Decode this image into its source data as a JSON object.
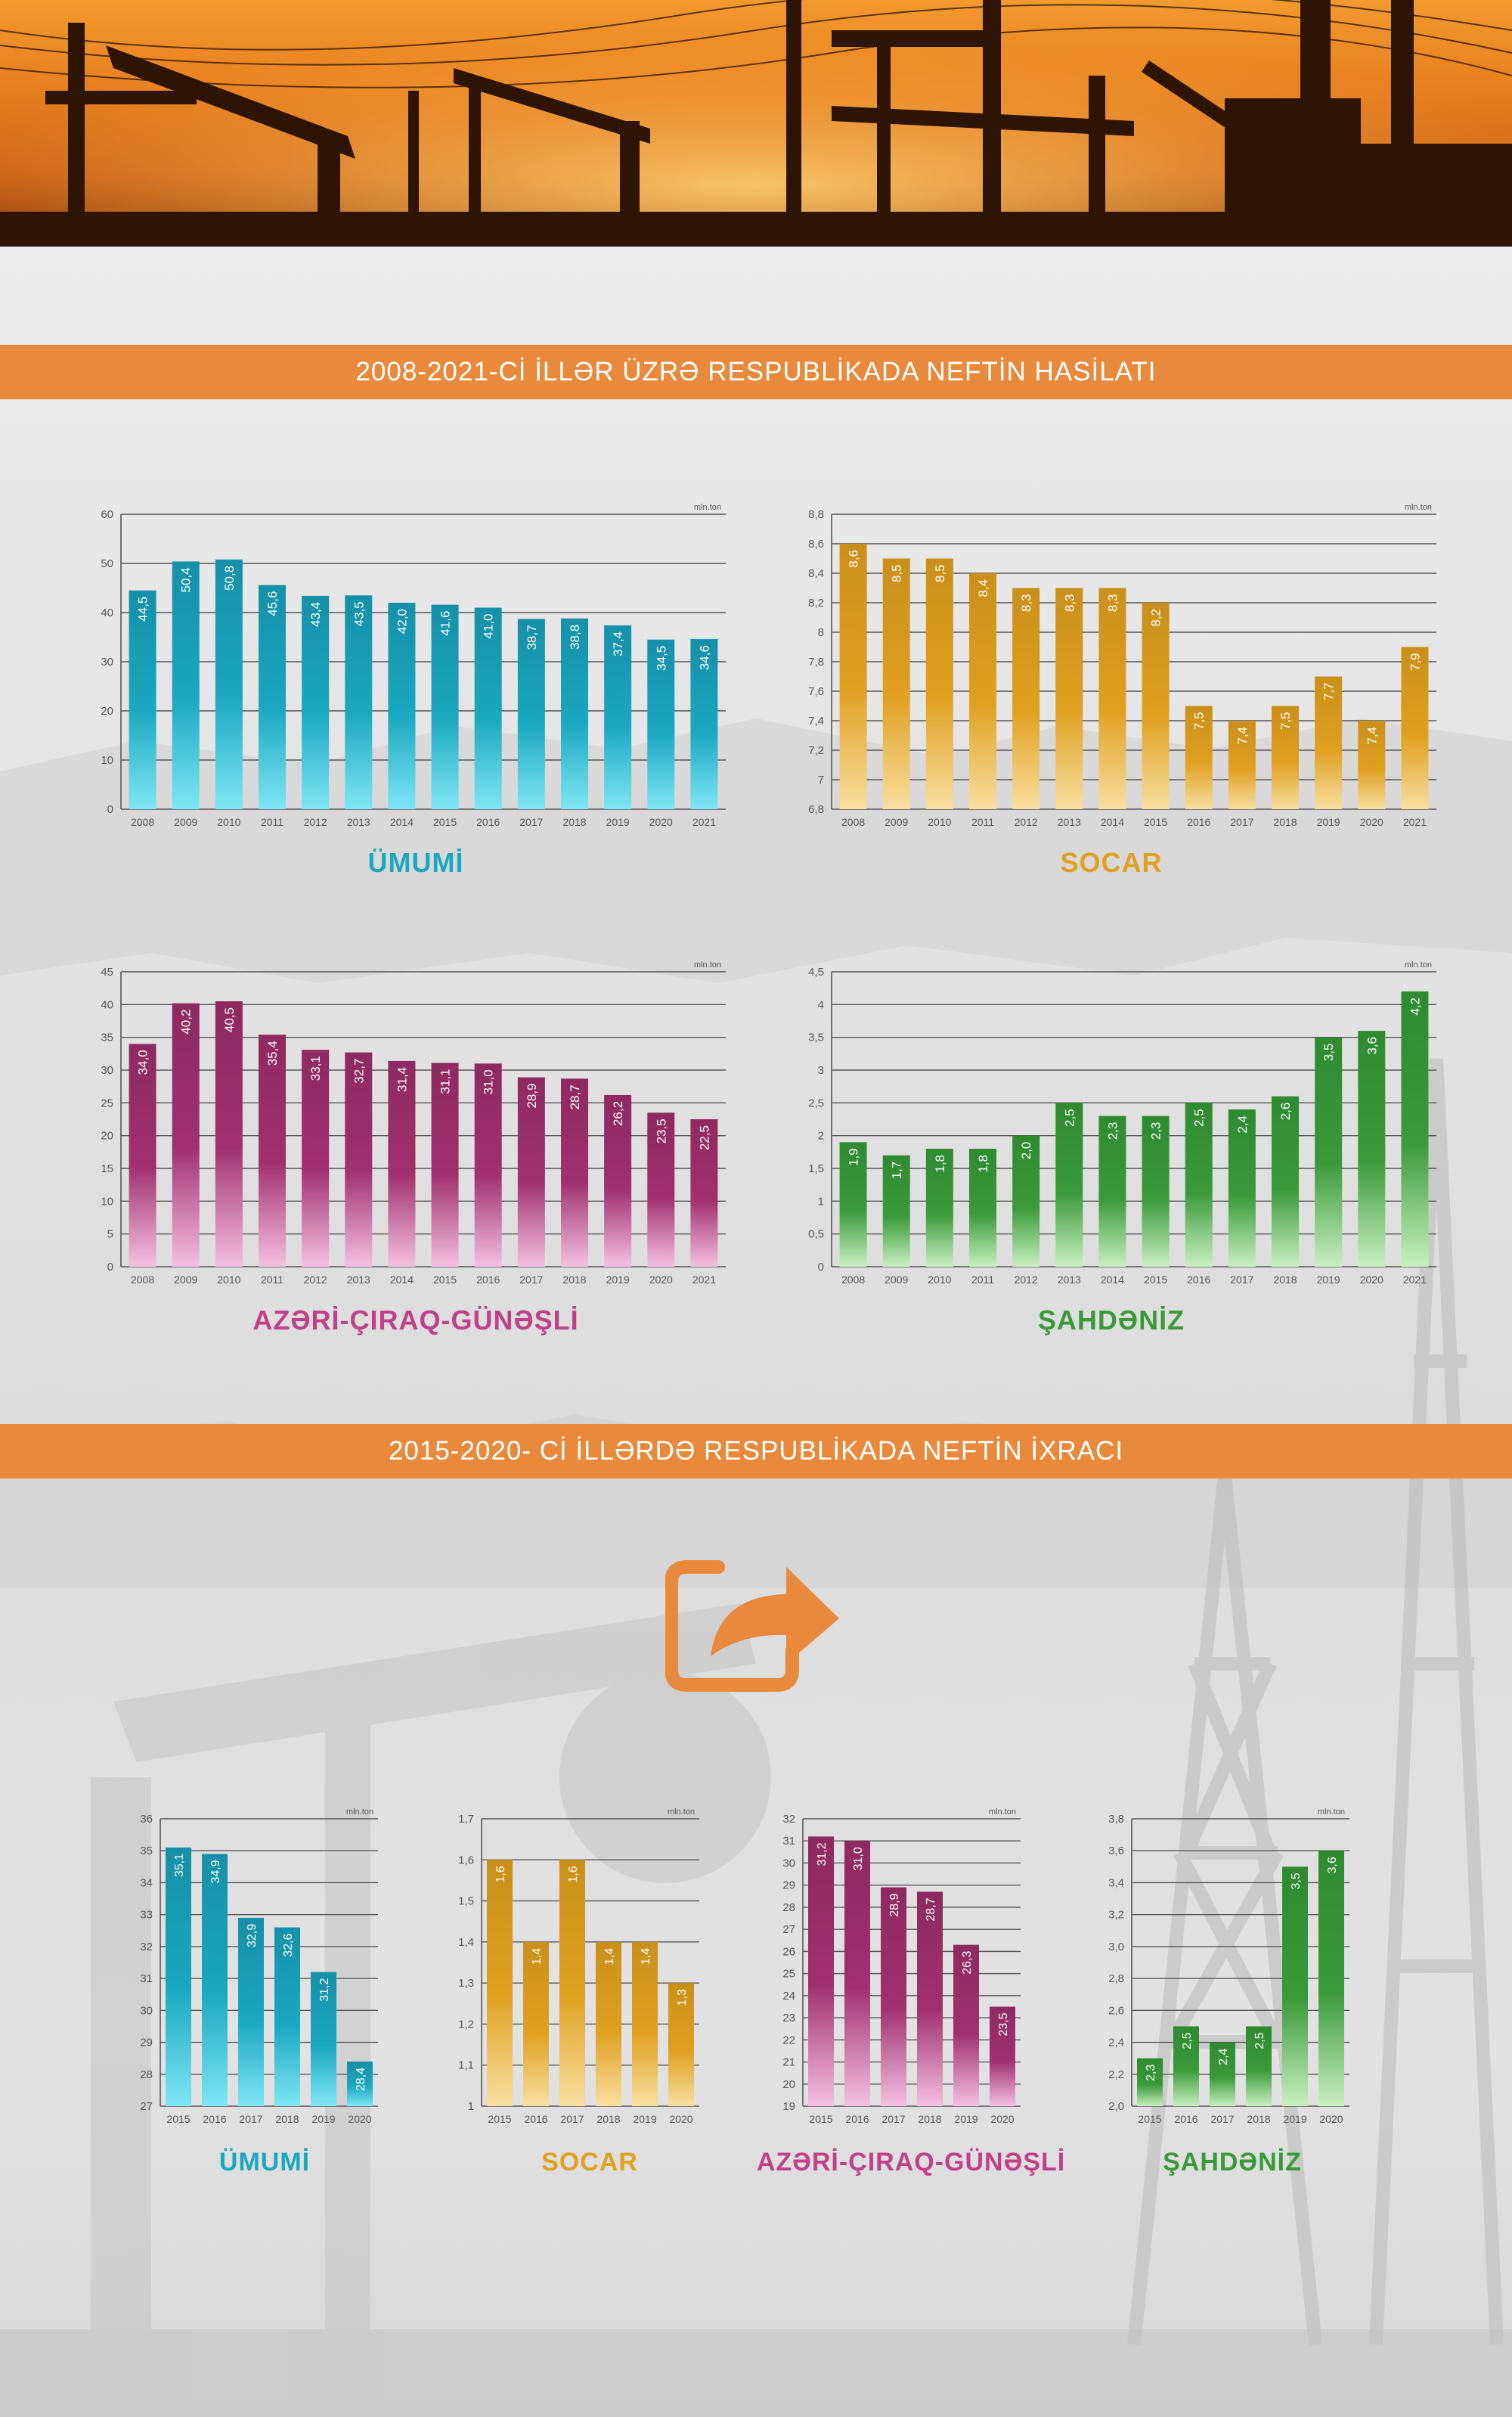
{
  "banners": {
    "production": "2008-2021-Cİ İLLƏR ÜZRƏ RESPUBLİKADA NEFTİN HASİLATI",
    "export": "2015-2020- Cİ İLLƏRDƏ RESPUBLİKADA NEFTİN İXRACI"
  },
  "colors": {
    "umumi": "#1aa8c0",
    "socar": "#e0a020",
    "acg": "#a0306e",
    "shahdeniz": "#3a9a3a",
    "banner": "#e8893c"
  },
  "icons": [
    "export-share-icon"
  ],
  "chart_data": [
    {
      "id": "prod-umumi",
      "type": "bar",
      "title": "ÜMUMİ",
      "unit": "mln.ton",
      "categories": [
        "2008",
        "2009",
        "2010",
        "2011",
        "2012",
        "2013",
        "2014",
        "2015",
        "2016",
        "2017",
        "2018",
        "2019",
        "2020",
        "2021"
      ],
      "values": [
        44.5,
        50.4,
        50.8,
        45.6,
        43.4,
        43.5,
        42.0,
        41.6,
        41.0,
        38.7,
        38.8,
        37.4,
        34.5,
        34.6
      ],
      "value_labels": [
        "44,5",
        "50,4",
        "50,8",
        "45,6",
        "43,4",
        "43,5",
        "42,0",
        "41,6",
        "41,0",
        "38,7",
        "38,8",
        "37,4",
        "34,5",
        "34,6"
      ],
      "ylim": [
        0,
        60
      ],
      "yticks": [
        0,
        10,
        20,
        30,
        40,
        50,
        60
      ],
      "ytick_labels": [
        "0",
        "10",
        "20",
        "30",
        "40",
        "50",
        "60"
      ]
    },
    {
      "id": "prod-socar",
      "type": "bar",
      "title": "SOCAR",
      "unit": "mln.ton",
      "categories": [
        "2008",
        "2009",
        "2010",
        "2011",
        "2012",
        "2013",
        "2014",
        "2015",
        "2016",
        "2017",
        "2018",
        "2019",
        "2020",
        "2021"
      ],
      "values": [
        8.6,
        8.5,
        8.5,
        8.4,
        8.3,
        8.3,
        8.3,
        8.2,
        7.5,
        7.4,
        7.5,
        7.7,
        7.4,
        7.9
      ],
      "value_labels": [
        "8,6",
        "8,5",
        "8,5",
        "8,4",
        "8,3",
        "8,3",
        "8,3",
        "8,2",
        "7,5",
        "7,4",
        "7,5",
        "7,7",
        "7,4",
        "7,9"
      ],
      "ylim": [
        6.8,
        8.8
      ],
      "yticks": [
        6.8,
        7,
        7.2,
        7.4,
        7.6,
        7.8,
        8,
        8.2,
        8.4,
        8.6,
        8.8
      ],
      "ytick_labels": [
        "6,8",
        "7",
        "7,2",
        "7,4",
        "7,6",
        "7,8",
        "8",
        "8,2",
        "8,4",
        "8,6",
        "8,8"
      ]
    },
    {
      "id": "prod-acg",
      "type": "bar",
      "title": "AZƏRİ-ÇIRAQ-GÜNƏŞLİ",
      "unit": "mln.ton",
      "categories": [
        "2008",
        "2009",
        "2010",
        "2011",
        "2012",
        "2013",
        "2014",
        "2015",
        "2016",
        "2017",
        "2018",
        "2019",
        "2020",
        "2021"
      ],
      "values": [
        34.0,
        40.2,
        40.5,
        35.4,
        33.1,
        32.7,
        31.4,
        31.1,
        31.0,
        28.9,
        28.7,
        26.2,
        23.5,
        22.5
      ],
      "value_labels": [
        "34,0",
        "40,2",
        "40,5",
        "35,4",
        "33,1",
        "32,7",
        "31,4",
        "31,1",
        "31,0",
        "28,9",
        "28,7",
        "26,2",
        "23,5",
        "22,5"
      ],
      "ylim": [
        0,
        45
      ],
      "yticks": [
        0,
        5,
        10,
        15,
        20,
        25,
        30,
        35,
        40,
        45
      ],
      "ytick_labels": [
        "0",
        "5",
        "10",
        "15",
        "20",
        "25",
        "30",
        "35",
        "40",
        "45"
      ]
    },
    {
      "id": "prod-shahdeniz",
      "type": "bar",
      "title": "ŞAHDƏNİZ",
      "unit": "mln.ton",
      "categories": [
        "2008",
        "2009",
        "2010",
        "2011",
        "2012",
        "2013",
        "2014",
        "2015",
        "2016",
        "2017",
        "2018",
        "2019",
        "2020",
        "2021"
      ],
      "values": [
        1.9,
        1.7,
        1.8,
        1.8,
        2.0,
        2.5,
        2.3,
        2.3,
        2.5,
        2.4,
        2.6,
        3.5,
        3.6,
        4.2
      ],
      "value_labels": [
        "1,9",
        "1,7",
        "1,8",
        "1,8",
        "2,0",
        "2,5",
        "2,3",
        "2,3",
        "2,5",
        "2,4",
        "2,6",
        "3,5",
        "3,6",
        "4,2"
      ],
      "ylim": [
        0,
        4.5
      ],
      "yticks": [
        0,
        0.5,
        1,
        1.5,
        2,
        2.5,
        3,
        3.5,
        4,
        4.5
      ],
      "ytick_labels": [
        "0",
        "0,5",
        "1",
        "1,5",
        "2",
        "2,5",
        "3",
        "3,5",
        "4",
        "4,5"
      ]
    },
    {
      "id": "exp-umumi",
      "type": "bar",
      "title": "ÜMUMİ",
      "unit": "mln.ton",
      "categories": [
        "2015",
        "2016",
        "2017",
        "2018",
        "2019",
        "2020"
      ],
      "values": [
        35.1,
        34.9,
        32.9,
        32.6,
        31.2,
        28.4
      ],
      "value_labels": [
        "35,1",
        "34,9",
        "32,9",
        "32,6",
        "31,2",
        "28,4"
      ],
      "ylim": [
        27,
        36
      ],
      "yticks": [
        27,
        28,
        29,
        30,
        31,
        32,
        33,
        34,
        35,
        36
      ],
      "ytick_labels": [
        "27",
        "28",
        "29",
        "30",
        "31",
        "32",
        "33",
        "34",
        "35",
        "36"
      ]
    },
    {
      "id": "exp-socar",
      "type": "bar",
      "title": "SOCAR",
      "unit": "mln.ton",
      "categories": [
        "2015",
        "2016",
        "2017",
        "2018",
        "2019",
        "2020"
      ],
      "values": [
        1.6,
        1.4,
        1.6,
        1.4,
        1.4,
        1.3
      ],
      "value_labels": [
        "1,6",
        "1,4",
        "1,6",
        "1,4",
        "1,4",
        "1,3"
      ],
      "ylim": [
        1,
        1.7
      ],
      "yticks": [
        1,
        1.1,
        1.2,
        1.3,
        1.4,
        1.5,
        1.6,
        1.7
      ],
      "ytick_labels": [
        "1",
        "1,1",
        "1,2",
        "1,3",
        "1,4",
        "1,5",
        "1,6",
        "1,7"
      ]
    },
    {
      "id": "exp-acg",
      "type": "bar",
      "title": "AZƏRİ-ÇIRAQ-GÜNƏŞLİ",
      "unit": "mln.ton",
      "categories": [
        "2015",
        "2016",
        "2017",
        "2018",
        "2019",
        "2020"
      ],
      "values": [
        31.2,
        31.0,
        28.9,
        28.7,
        26.3,
        23.5
      ],
      "value_labels": [
        "31,2",
        "31,0",
        "28,9",
        "28,7",
        "26,3",
        "23,5"
      ],
      "ylim": [
        19,
        32
      ],
      "yticks": [
        19,
        20,
        21,
        22,
        23,
        24,
        25,
        26,
        27,
        28,
        29,
        30,
        31,
        32
      ],
      "ytick_labels": [
        "19",
        "20",
        "21",
        "22",
        "23",
        "24",
        "25",
        "26",
        "27",
        "28",
        "29",
        "30",
        "31",
        "32"
      ]
    },
    {
      "id": "exp-shahdeniz",
      "type": "bar",
      "title": "ŞAHDƏNİZ",
      "unit": "mln.ton",
      "categories": [
        "2015",
        "2016",
        "2017",
        "2018",
        "2019",
        "2020"
      ],
      "values": [
        2.3,
        2.5,
        2.4,
        2.5,
        3.5,
        3.6
      ],
      "value_labels": [
        "2,3",
        "2,5",
        "2,4",
        "2,5",
        "3,5",
        "3,6"
      ],
      "ylim": [
        2.0,
        3.8
      ],
      "yticks": [
        2.0,
        2.2,
        2.4,
        2.6,
        2.8,
        3.0,
        3.2,
        3.4,
        3.6,
        3.8
      ],
      "ytick_labels": [
        "2,0",
        "2,2",
        "2,4",
        "2,6",
        "2,8",
        "3,0",
        "3,2",
        "3,4",
        "3,6",
        "3,8"
      ]
    }
  ]
}
